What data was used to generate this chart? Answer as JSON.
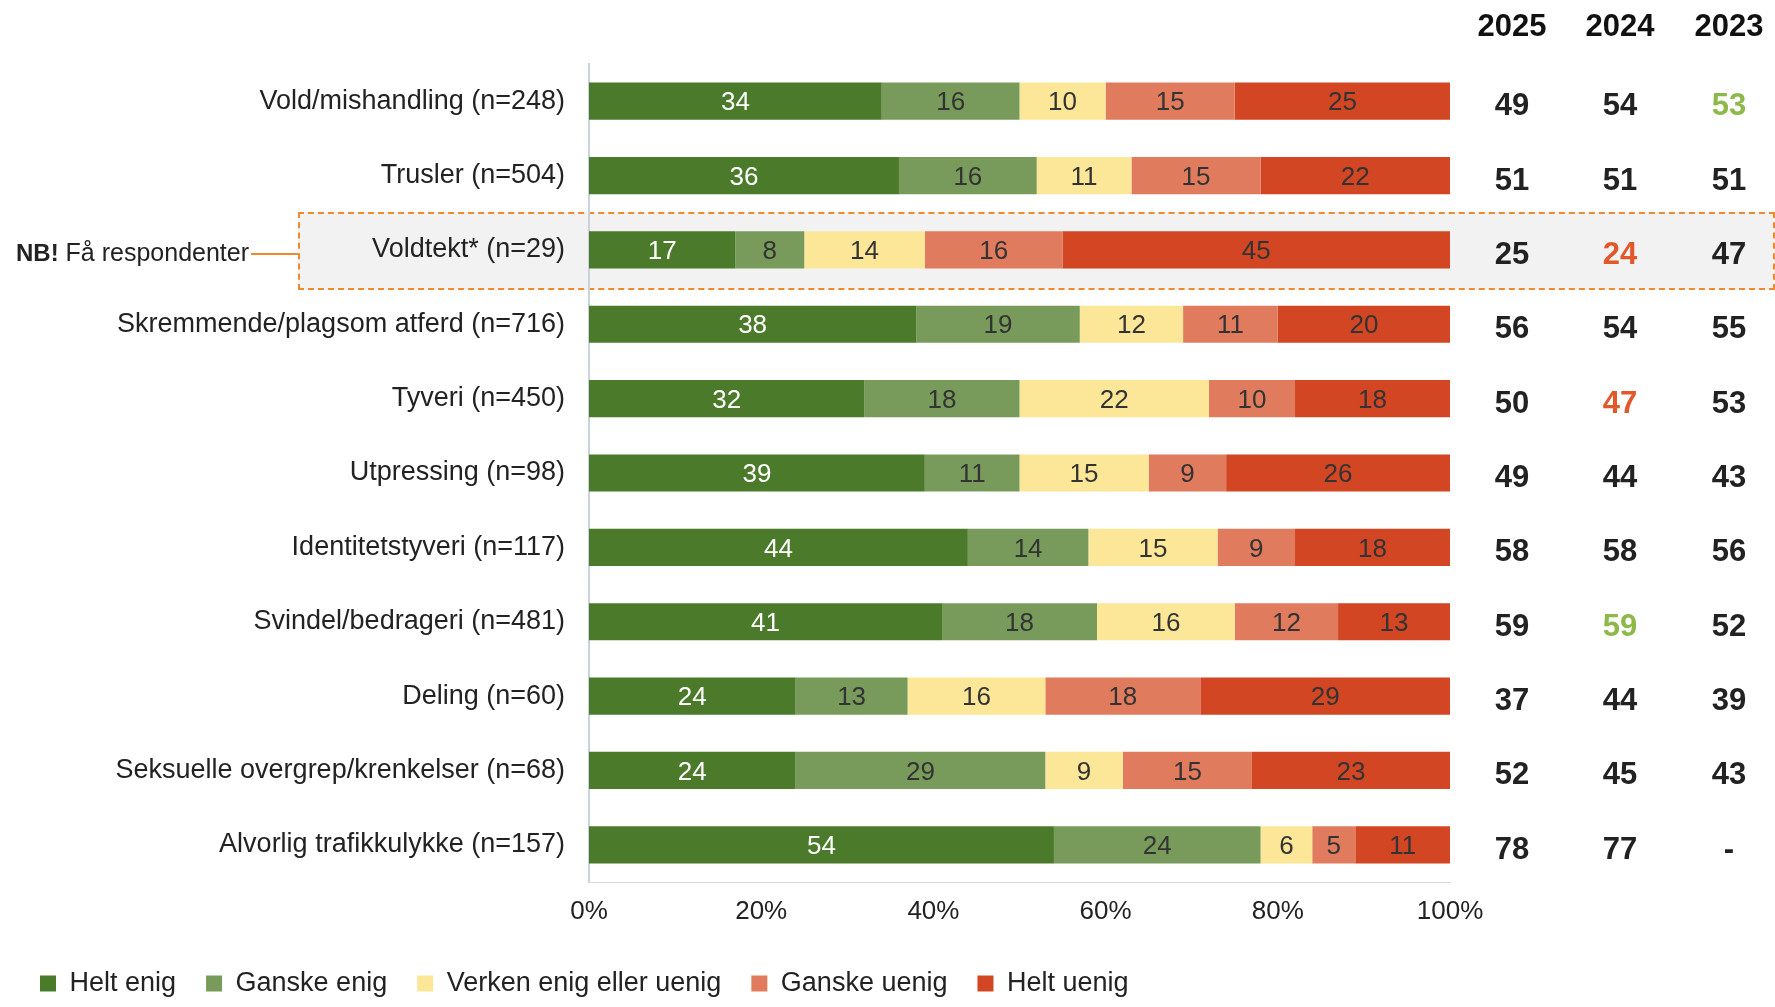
{
  "chart_data": [
    {
      "type": "bar",
      "orientation": "horizontal",
      "stacked": true,
      "data_labels": true,
      "grid": false,
      "legend": "bottom",
      "categories": [
        "Vold/mishandling (n=248)",
        "Trusler (n=504)",
        "Voldtekt* (n=29)",
        "Skremmende/plagsom atferd (n=716)",
        "Tyveri (n=450)",
        "Utpressing (n=98)",
        "Identitetstyveri (n=117)",
        "Svindel/bedrageri (n=481)",
        "Deling (n=60)",
        "Seksuelle overgrep/krenkelser (n=68)",
        "Alvorlig trafikkulykke (n=157)"
      ],
      "series": [
        {
          "name": "Helt enig",
          "color": "#4b7a2b",
          "values": [
            34,
            36,
            17,
            38,
            32,
            39,
            44,
            41,
            24,
            24,
            54
          ]
        },
        {
          "name": "Ganske enig",
          "color": "#789b5b",
          "values": [
            16,
            16,
            8,
            19,
            18,
            11,
            14,
            18,
            13,
            29,
            24
          ]
        },
        {
          "name": "Verken enig eller uenig",
          "color": "#fbe797",
          "values": [
            10,
            11,
            14,
            12,
            22,
            15,
            15,
            16,
            16,
            9,
            6
          ]
        },
        {
          "name": "Ganske uenig",
          "color": "#e07b5e",
          "values": [
            15,
            15,
            16,
            11,
            10,
            9,
            9,
            12,
            18,
            15,
            5
          ]
        },
        {
          "name": "Helt uenig",
          "color": "#d24623",
          "values": [
            25,
            22,
            45,
            20,
            18,
            26,
            18,
            13,
            29,
            23,
            11
          ]
        }
      ],
      "xlim": [
        0,
        100
      ],
      "xticks": [
        {
          "value": 0,
          "label": "0%"
        },
        {
          "value": 20,
          "label": "20%"
        },
        {
          "value": 40,
          "label": "40%"
        },
        {
          "value": 60,
          "label": "60%"
        },
        {
          "value": 80,
          "label": "80%"
        },
        {
          "value": 100,
          "label": "100%"
        }
      ],
      "bands": [
        {
          "axis": "y",
          "from": "Voldtekt* (n=29)",
          "to": "Voldtekt* (n=29)",
          "label": "NB! Få respondenter",
          "color": "#f2f2f2"
        }
      ]
    },
    {
      "type": "other",
      "data_labels": true,
      "categories": [
        "2025",
        "2024",
        "2023"
      ],
      "series": [
        {
          "values": [
            49,
            54,
            53
          ],
          "colors": [
            "#222222",
            "#222222",
            "#8db84a"
          ]
        },
        {
          "values": [
            51,
            51,
            51
          ],
          "colors": [
            "#222222",
            "#222222",
            "#222222"
          ]
        },
        {
          "values": [
            25,
            24,
            47
          ],
          "colors": [
            "#222222",
            "#e2582a",
            "#222222"
          ]
        },
        {
          "values": [
            56,
            54,
            55
          ],
          "colors": [
            "#222222",
            "#222222",
            "#222222"
          ]
        },
        {
          "values": [
            50,
            47,
            53
          ],
          "colors": [
            "#222222",
            "#e2582a",
            "#222222"
          ]
        },
        {
          "values": [
            49,
            44,
            43
          ],
          "colors": [
            "#222222",
            "#222222",
            "#222222"
          ]
        },
        {
          "values": [
            58,
            58,
            56
          ],
          "colors": [
            "#222222",
            "#222222",
            "#222222"
          ]
        },
        {
          "values": [
            59,
            59,
            52
          ],
          "colors": [
            "#222222",
            "#8db84a",
            "#222222"
          ]
        },
        {
          "values": [
            37,
            44,
            39
          ],
          "colors": [
            "#222222",
            "#222222",
            "#222222"
          ]
        },
        {
          "values": [
            52,
            45,
            43
          ],
          "colors": [
            "#222222",
            "#222222",
            "#222222"
          ]
        },
        {
          "values": [
            78,
            77,
            null
          ],
          "value_labels": [
            "78",
            "77",
            "-"
          ],
          "colors": [
            "#222222",
            "#222222",
            "#222222"
          ]
        }
      ]
    }
  ]
}
